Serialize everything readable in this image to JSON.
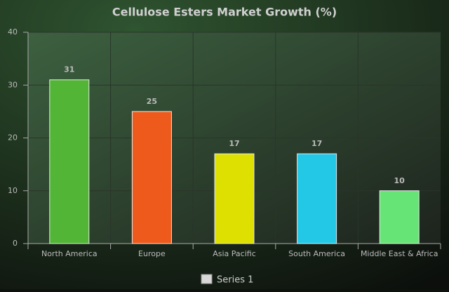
{
  "chart_data": {
    "type": "bar",
    "title": "Cellulose Esters Market Growth (%)",
    "categories": [
      "North America",
      "Europe",
      "Asia Pacific",
      "South America",
      "Middle East & Africa"
    ],
    "series": [
      {
        "name": "Series 1",
        "color": "#d8d8d8",
        "values": [
          31,
          25,
          17,
          17,
          10
        ],
        "colors": [
          "#52b535",
          "#ee5a1c",
          "#dde000",
          "#22c8e6",
          "#66e476"
        ]
      }
    ],
    "ylim": [
      0,
      40
    ],
    "yticks": [
      0,
      10,
      20,
      30,
      40
    ],
    "grid": true,
    "legend": "bottom"
  }
}
